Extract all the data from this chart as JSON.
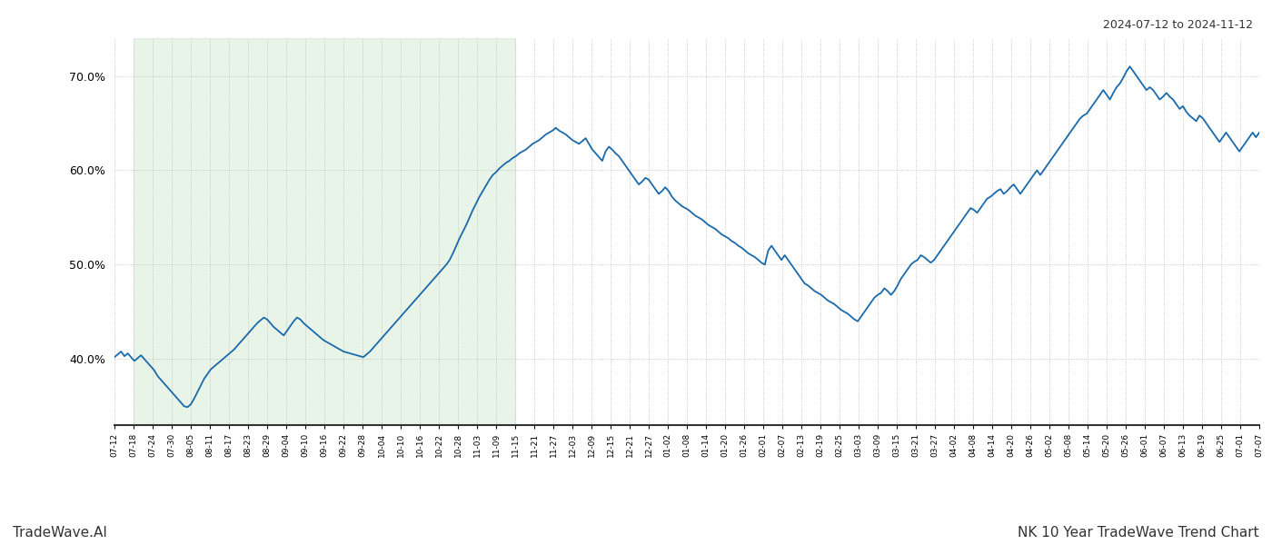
{
  "title_right": "2024-07-12 to 2024-11-12",
  "title_bottom_left": "TradeWave.AI",
  "title_bottom_right": "NK 10 Year TradeWave Trend Chart",
  "line_color": "#1a6aab",
  "line_width": 1.3,
  "bg_color": "#ffffff",
  "grid_color": "#bbbbbb",
  "shade_color": "#cce8cc",
  "shade_alpha": 0.45,
  "ylim": [
    33,
    74
  ],
  "ytick_values": [
    40,
    50,
    60,
    70
  ],
  "x_labels": [
    "07-12",
    "07-18",
    "07-24",
    "07-30",
    "08-05",
    "08-11",
    "08-17",
    "08-23",
    "08-29",
    "09-04",
    "09-10",
    "09-16",
    "09-22",
    "09-28",
    "10-04",
    "10-10",
    "10-16",
    "10-22",
    "10-28",
    "11-03",
    "11-09",
    "11-15",
    "11-21",
    "11-27",
    "12-03",
    "12-09",
    "12-15",
    "12-21",
    "12-27",
    "01-02",
    "01-08",
    "01-14",
    "01-20",
    "01-26",
    "02-01",
    "02-07",
    "02-13",
    "02-19",
    "02-25",
    "03-03",
    "03-09",
    "03-15",
    "03-21",
    "03-27",
    "04-02",
    "04-08",
    "04-14",
    "04-20",
    "04-26",
    "05-02",
    "05-08",
    "05-14",
    "05-20",
    "05-26",
    "06-01",
    "06-07",
    "06-13",
    "06-19",
    "06-25",
    "07-01",
    "07-07"
  ],
  "shade_x_start_label": "07-18",
  "shade_x_end_label": "11-15",
  "values": [
    40.2,
    40.5,
    40.8,
    40.3,
    40.6,
    40.2,
    39.8,
    40.1,
    40.4,
    40.0,
    39.6,
    39.2,
    38.8,
    38.2,
    37.8,
    37.4,
    37.0,
    36.6,
    36.2,
    35.8,
    35.4,
    35.0,
    34.9,
    35.2,
    35.8,
    36.5,
    37.2,
    37.9,
    38.4,
    38.9,
    39.2,
    39.5,
    39.8,
    40.1,
    40.4,
    40.7,
    41.0,
    41.4,
    41.8,
    42.2,
    42.6,
    43.0,
    43.4,
    43.8,
    44.1,
    44.4,
    44.2,
    43.8,
    43.4,
    43.1,
    42.8,
    42.5,
    43.0,
    43.5,
    44.0,
    44.4,
    44.2,
    43.8,
    43.5,
    43.2,
    42.9,
    42.6,
    42.3,
    42.0,
    41.8,
    41.6,
    41.4,
    41.2,
    41.0,
    40.8,
    40.7,
    40.6,
    40.5,
    40.4,
    40.3,
    40.2,
    40.5,
    40.8,
    41.2,
    41.6,
    42.0,
    42.4,
    42.8,
    43.2,
    43.6,
    44.0,
    44.4,
    44.8,
    45.2,
    45.6,
    46.0,
    46.4,
    46.8,
    47.2,
    47.6,
    48.0,
    48.4,
    48.8,
    49.2,
    49.6,
    50.0,
    50.5,
    51.2,
    52.0,
    52.8,
    53.5,
    54.2,
    55.0,
    55.8,
    56.5,
    57.2,
    57.8,
    58.4,
    59.0,
    59.5,
    59.8,
    60.2,
    60.5,
    60.8,
    61.0,
    61.3,
    61.5,
    61.8,
    62.0,
    62.2,
    62.5,
    62.8,
    63.0,
    63.2,
    63.5,
    63.8,
    64.0,
    64.2,
    64.5,
    64.2,
    64.0,
    63.8,
    63.5,
    63.2,
    63.0,
    62.8,
    63.1,
    63.4,
    62.8,
    62.2,
    61.8,
    61.4,
    61.0,
    62.0,
    62.5,
    62.2,
    61.8,
    61.5,
    61.0,
    60.5,
    60.0,
    59.5,
    59.0,
    58.5,
    58.8,
    59.2,
    59.0,
    58.5,
    58.0,
    57.5,
    57.8,
    58.2,
    57.8,
    57.2,
    56.8,
    56.5,
    56.2,
    56.0,
    55.8,
    55.5,
    55.2,
    55.0,
    54.8,
    54.5,
    54.2,
    54.0,
    53.8,
    53.5,
    53.2,
    53.0,
    52.8,
    52.5,
    52.3,
    52.0,
    51.8,
    51.5,
    51.2,
    51.0,
    50.8,
    50.5,
    50.2,
    50.0,
    51.5,
    52.0,
    51.5,
    51.0,
    50.5,
    51.0,
    50.5,
    50.0,
    49.5,
    49.0,
    48.5,
    48.0,
    47.8,
    47.5,
    47.2,
    47.0,
    46.8,
    46.5,
    46.2,
    46.0,
    45.8,
    45.5,
    45.2,
    45.0,
    44.8,
    44.5,
    44.2,
    44.0,
    44.5,
    45.0,
    45.5,
    46.0,
    46.5,
    46.8,
    47.0,
    47.5,
    47.2,
    46.8,
    47.2,
    47.8,
    48.5,
    49.0,
    49.5,
    50.0,
    50.3,
    50.5,
    51.0,
    50.8,
    50.5,
    50.2,
    50.5,
    51.0,
    51.5,
    52.0,
    52.5,
    53.0,
    53.5,
    54.0,
    54.5,
    55.0,
    55.5,
    56.0,
    55.8,
    55.5,
    56.0,
    56.5,
    57.0,
    57.2,
    57.5,
    57.8,
    58.0,
    57.5,
    57.8,
    58.2,
    58.5,
    58.0,
    57.5,
    58.0,
    58.5,
    59.0,
    59.5,
    60.0,
    59.5,
    60.0,
    60.5,
    61.0,
    61.5,
    62.0,
    62.5,
    63.0,
    63.5,
    64.0,
    64.5,
    65.0,
    65.5,
    65.8,
    66.0,
    66.5,
    67.0,
    67.5,
    68.0,
    68.5,
    68.0,
    67.5,
    68.2,
    68.8,
    69.2,
    69.8,
    70.5,
    71.0,
    70.5,
    70.0,
    69.5,
    69.0,
    68.5,
    68.8,
    68.5,
    68.0,
    67.5,
    67.8,
    68.2,
    67.8,
    67.5,
    67.0,
    66.5,
    66.8,
    66.2,
    65.8,
    65.5,
    65.2,
    65.8,
    65.5,
    65.0,
    64.5,
    64.0,
    63.5,
    63.0,
    63.5,
    64.0,
    63.5,
    63.0,
    62.5,
    62.0,
    62.5,
    63.0,
    63.5,
    64.0,
    63.5,
    64.0
  ]
}
